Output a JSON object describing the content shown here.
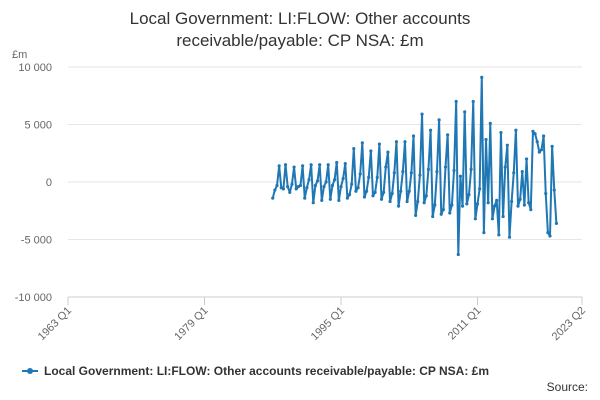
{
  "chart_data": {
    "type": "line",
    "title_lines": [
      "Local Government: LI:FLOW: Other accounts",
      "receivable/payable: CP NSA: £m"
    ],
    "ylabel": "£m",
    "ylim": [
      -10000,
      10000
    ],
    "yticks": [
      -10000,
      -5000,
      0,
      5000,
      10000
    ],
    "ytick_labels": [
      "-10 000",
      "-5 000",
      "0",
      "5 000",
      "10 000"
    ],
    "xlim": [
      1963.0,
      2023.25
    ],
    "xticks": [
      1963.0,
      1979.0,
      1995.0,
      2011.0,
      2023.25
    ],
    "xtick_labels": [
      "1963 Q1",
      "1979 Q1",
      "1995 Q1",
      "2011 Q1",
      "2023 Q2"
    ],
    "grid": "horizontal",
    "legend_position": "bottom",
    "series": [
      {
        "name": "Local Government: LI:FLOW: Other accounts receivable/payable: CP NSA: £m",
        "color": "#1f77b4",
        "start": 1987.0,
        "step": 0.25,
        "values": [
          -1400,
          -700,
          -300,
          1400,
          -500,
          -600,
          1500,
          -400,
          -900,
          -200,
          1300,
          -600,
          -400,
          -300,
          1400,
          -1400,
          -500,
          200,
          1500,
          -1800,
          -300,
          100,
          1500,
          -1600,
          -400,
          0,
          1500,
          -1500,
          -300,
          200,
          1700,
          -1600,
          -400,
          300,
          1600,
          -1400,
          -1100,
          -200,
          2900,
          -800,
          -500,
          700,
          3400,
          -1300,
          -800,
          400,
          2700,
          -1200,
          -900,
          400,
          3300,
          -1500,
          -900,
          1300,
          2600,
          -1700,
          -1000,
          800,
          3500,
          -2100,
          -800,
          900,
          3500,
          -1700,
          -800,
          800,
          4000,
          -2900,
          -1700,
          600,
          5900,
          -1800,
          -1200,
          1100,
          4500,
          -3000,
          -2000,
          900,
          5400,
          -2800,
          -2400,
          1300,
          4100,
          -2700,
          -2000,
          1000,
          7000,
          -6300,
          500,
          -2100,
          6100,
          -1900,
          -1100,
          1100,
          7000,
          -3200,
          -1900,
          -600,
          9100,
          -4400,
          3700,
          -1800,
          5100,
          -3200,
          -2100,
          -1600,
          -4600,
          4300,
          -3000,
          1300,
          3200,
          -4800,
          -1700,
          800,
          4500,
          -2100,
          -1500,
          900,
          -2000,
          2000,
          -1800,
          -2400,
          4400,
          4200,
          3500,
          2600,
          2800,
          4000,
          -1000,
          -4400,
          -4700,
          3100,
          -700,
          -3600
        ],
        "note": "quarterly values, approximate"
      }
    ]
  },
  "legend": {
    "label": "Local Government: LI:FLOW: Other accounts receivable/payable: CP NSA: £m"
  },
  "source_label": "Source:"
}
